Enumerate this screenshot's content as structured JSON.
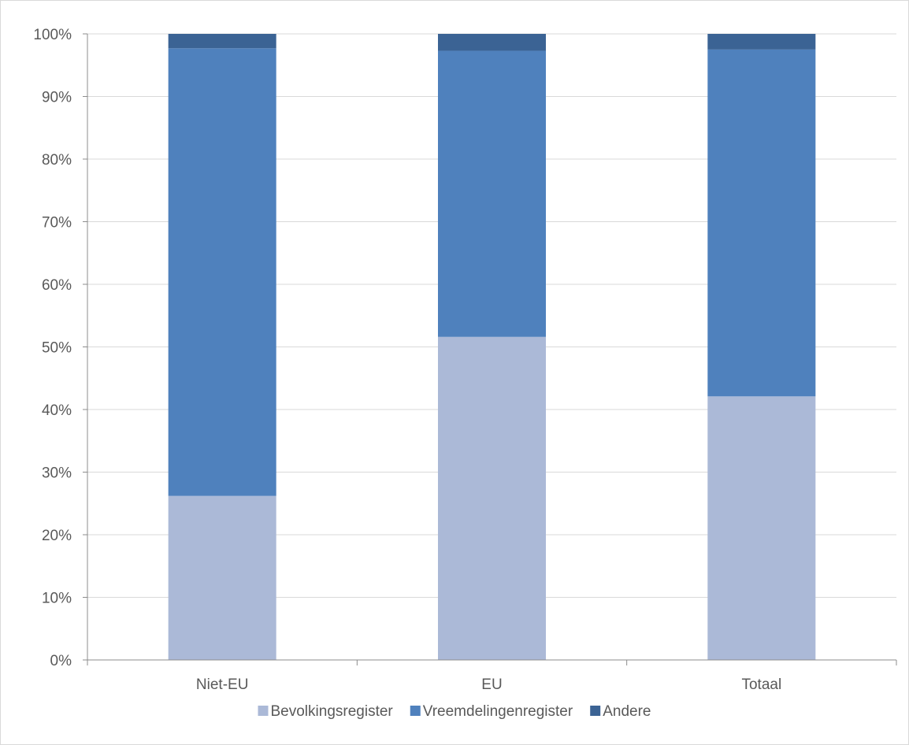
{
  "chart_data": {
    "type": "bar",
    "stacked": "percent",
    "categories": [
      "Niet-EU",
      "EU",
      "Totaal"
    ],
    "series": [
      {
        "name": "Bevolkingsregister",
        "color": "#abb9d7",
        "values": [
          26.2,
          51.6,
          42.1
        ]
      },
      {
        "name": "Vreemdelingenregister",
        "color": "#4f81bd",
        "values": [
          71.5,
          45.7,
          55.4
        ]
      },
      {
        "name": "Andere",
        "color": "#3b6394",
        "values": [
          2.3,
          2.7,
          2.5
        ]
      }
    ],
    "ylim": [
      0,
      100
    ],
    "yticks": [
      "0%",
      "10%",
      "20%",
      "30%",
      "40%",
      "50%",
      "60%",
      "70%",
      "80%",
      "90%",
      "100%"
    ],
    "grid": true,
    "legend_position": "bottom"
  }
}
